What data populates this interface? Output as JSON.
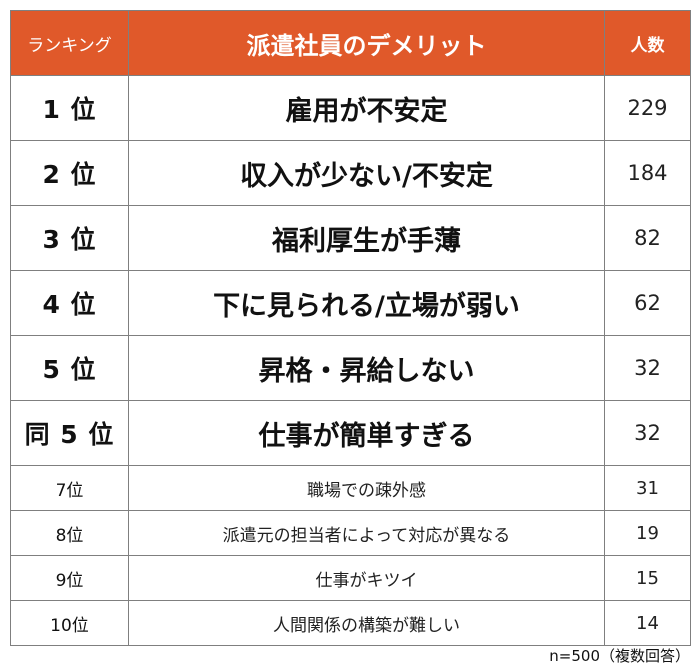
{
  "colors": {
    "header_bg": "#e0592a",
    "header_text": "#ffffff",
    "border": "#7f7f7f"
  },
  "header": {
    "rank": "ランキング",
    "item": "派遣社員のデメリット",
    "count": "人数"
  },
  "chart_data": {
    "type": "table",
    "title": "派遣社員のデメリット",
    "columns": [
      "ランキング",
      "派遣社員のデメリット",
      "人数"
    ],
    "rows": [
      {
        "rank": "1 位",
        "item": "雇用が不安定",
        "count": 229
      },
      {
        "rank": "2 位",
        "item": "収入が少ない/不安定",
        "count": 184
      },
      {
        "rank": "3 位",
        "item": "福利厚生が手薄",
        "count": 82
      },
      {
        "rank": "4 位",
        "item": "下に見られる/立場が弱い",
        "count": 62
      },
      {
        "rank": "5 位",
        "item": "昇格・昇給しない",
        "count": 32
      },
      {
        "rank": "同 5 位",
        "item": "仕事が簡単すぎる",
        "count": 32
      },
      {
        "rank": "7位",
        "item": "職場での疎外感",
        "count": 31
      },
      {
        "rank": "8位",
        "item": "派遣元の担当者によって対応が異なる",
        "count": 19
      },
      {
        "rank": "9位",
        "item": "仕事がキツイ",
        "count": 15
      },
      {
        "rank": "10位",
        "item": "人間関係の構築が難しい",
        "count": 14
      }
    ]
  },
  "footnote": "n=500（複数回答）"
}
